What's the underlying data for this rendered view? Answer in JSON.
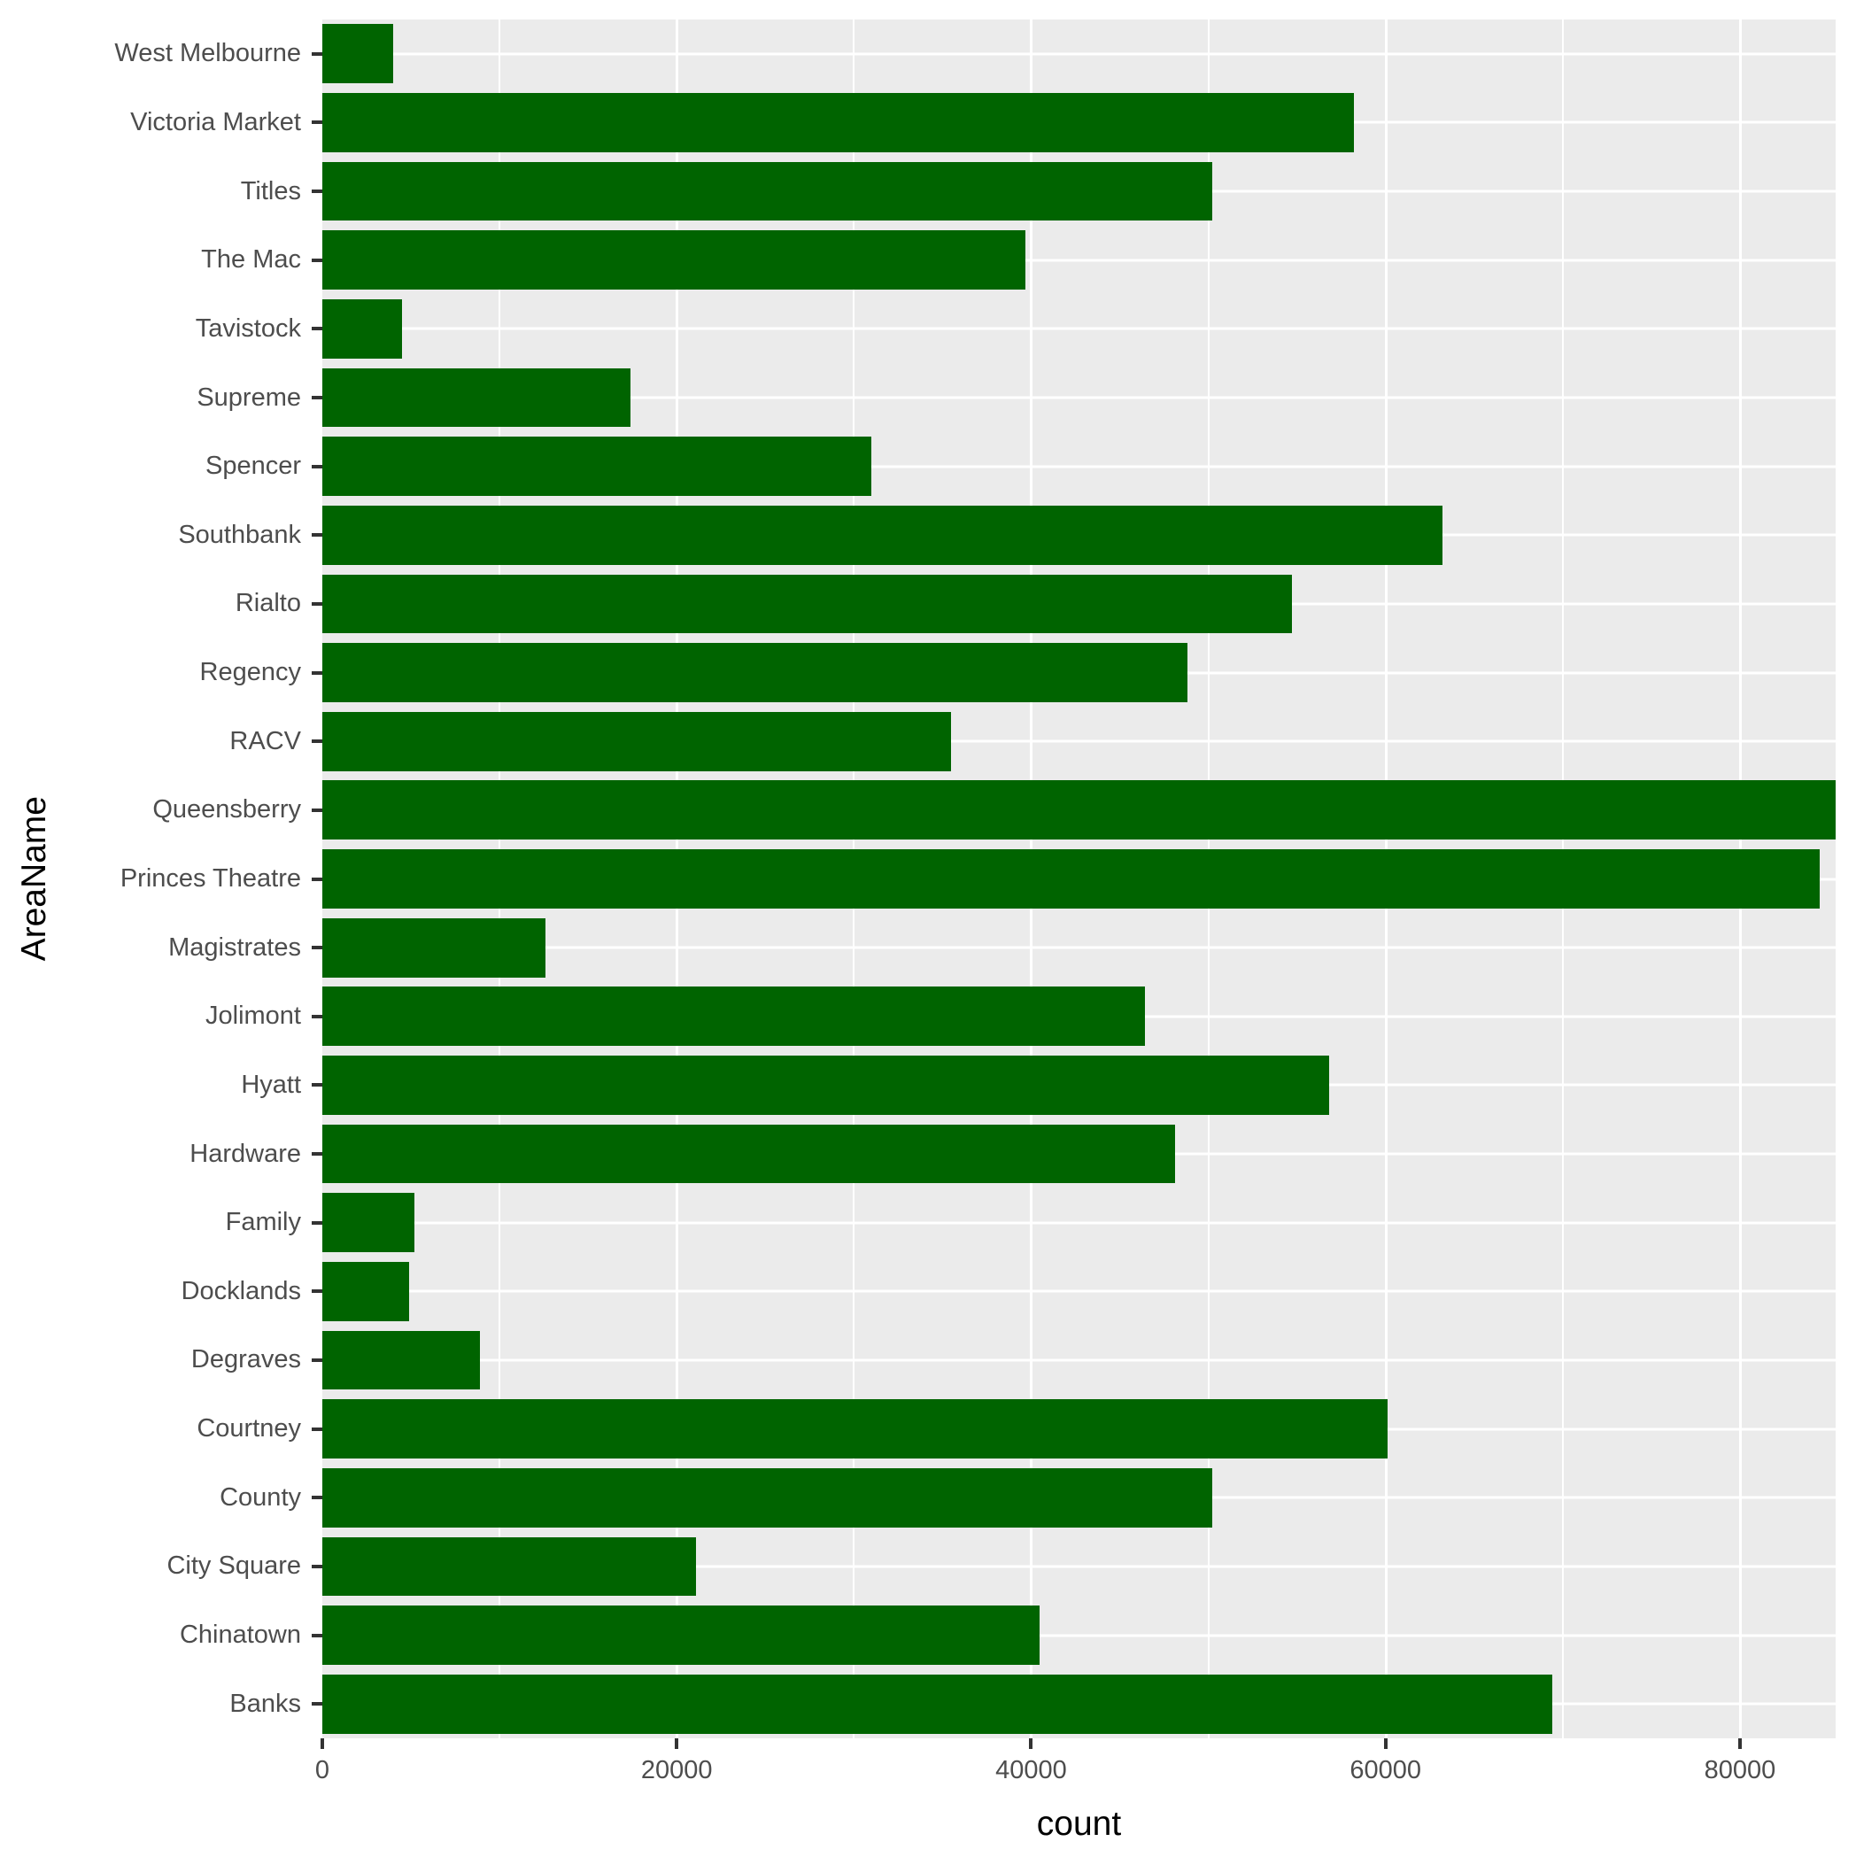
{
  "chart_data": {
    "type": "bar",
    "orientation": "horizontal",
    "title": "",
    "xlabel": "count",
    "ylabel": "AreaName",
    "categories": [
      "West Melbourne",
      "Victoria Market",
      "Titles",
      "The Mac",
      "Tavistock",
      "Supreme",
      "Spencer",
      "Southbank",
      "Rialto",
      "Regency",
      "RACV",
      "Queensberry",
      "Princes Theatre",
      "Magistrates",
      "Jolimont",
      "Hyatt",
      "Hardware",
      "Family",
      "Docklands",
      "Degraves",
      "Courtney",
      "County",
      "City Square",
      "Chinatown",
      "Banks"
    ],
    "values": [
      4000,
      58200,
      50200,
      39700,
      4500,
      17400,
      31000,
      63200,
      54700,
      48800,
      35500,
      85400,
      84500,
      12600,
      46400,
      56800,
      48100,
      5200,
      4900,
      8900,
      60100,
      50200,
      21100,
      40500,
      69400
    ],
    "xlim": [
      0,
      85400
    ],
    "x_major_ticks": [
      0,
      20000,
      40000,
      60000,
      80000
    ],
    "x_tick_labels": [
      "0",
      "20000",
      "40000",
      "60000",
      "80000"
    ],
    "x_minor_gridlines": [
      10000,
      30000,
      50000,
      70000
    ],
    "x_major_gridlines": [
      20000,
      40000,
      60000,
      80000
    ],
    "grid": true,
    "legend": false,
    "bar_color": "#006400",
    "panel_bg": "#EBEBEB",
    "grid_color": "#FFFFFF",
    "axis_text_color": "#4D4D4D",
    "axis_title_color": "#000000",
    "tick_mark_color": "#333333"
  },
  "axes": {
    "x_title": "count",
    "y_title": "AreaName"
  }
}
